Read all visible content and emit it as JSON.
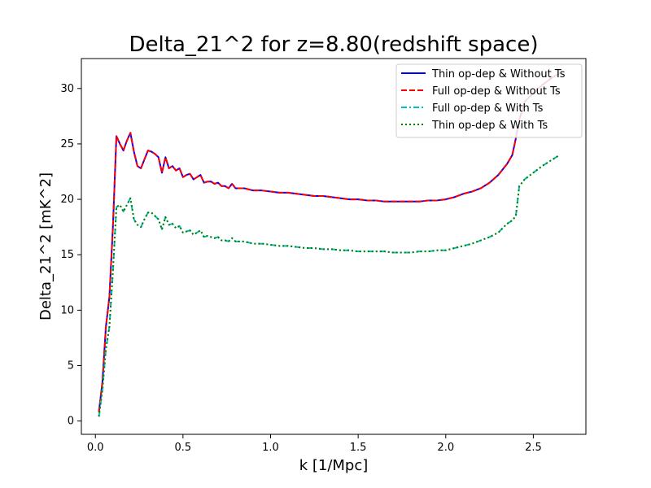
{
  "chart_data": {
    "type": "line",
    "title": "Delta_21^2 for z=8.80(redshift space)",
    "xlabel": "k [1/Mpc]",
    "ylabel": "Delta_21^2 [mK^2]",
    "xlim": [
      -0.08,
      2.8
    ],
    "ylim": [
      -1.2,
      32.7
    ],
    "xticks": [
      0.0,
      0.5,
      1.0,
      1.5,
      2.0,
      2.5
    ],
    "xtick_labels": [
      "0.0",
      "0.5",
      "1.0",
      "1.5",
      "2.0",
      "2.5"
    ],
    "yticks": [
      0,
      5,
      10,
      15,
      20,
      25,
      30
    ],
    "ytick_labels": [
      "0",
      "5",
      "10",
      "15",
      "20",
      "25",
      "30"
    ],
    "legend_position": "top-right",
    "grid": false,
    "series": [
      {
        "name": "Thin op-dep & Without Ts",
        "color": "#0000ff",
        "dash": "solid",
        "x": [
          0.02,
          0.04,
          0.06,
          0.08,
          0.1,
          0.12,
          0.14,
          0.16,
          0.18,
          0.2,
          0.22,
          0.24,
          0.26,
          0.28,
          0.3,
          0.32,
          0.34,
          0.36,
          0.38,
          0.4,
          0.42,
          0.44,
          0.46,
          0.48,
          0.5,
          0.52,
          0.54,
          0.56,
          0.58,
          0.6,
          0.62,
          0.64,
          0.66,
          0.68,
          0.7,
          0.72,
          0.74,
          0.76,
          0.78,
          0.8,
          0.85,
          0.9,
          0.95,
          1.0,
          1.05,
          1.1,
          1.15,
          1.2,
          1.25,
          1.3,
          1.35,
          1.4,
          1.45,
          1.5,
          1.55,
          1.6,
          1.65,
          1.7,
          1.75,
          1.8,
          1.85,
          1.9,
          1.95,
          2.0,
          2.05,
          2.1,
          2.15,
          2.2,
          2.25,
          2.3,
          2.35,
          2.38,
          2.4,
          2.42,
          2.45,
          2.5,
          2.55,
          2.6,
          2.65
        ],
        "y": [
          0.8,
          3.5,
          8.5,
          11.2,
          17.5,
          25.7,
          25.0,
          24.4,
          25.3,
          26.0,
          24.3,
          23.0,
          22.8,
          23.6,
          24.4,
          24.3,
          24.1,
          23.8,
          22.4,
          23.8,
          22.8,
          23.0,
          22.6,
          22.8,
          22.0,
          22.2,
          22.3,
          21.8,
          22.0,
          22.2,
          21.5,
          21.6,
          21.6,
          21.4,
          21.5,
          21.2,
          21.2,
          21.0,
          21.4,
          21.0,
          21.0,
          20.8,
          20.8,
          20.7,
          20.6,
          20.6,
          20.5,
          20.4,
          20.3,
          20.3,
          20.2,
          20.1,
          20.0,
          20.0,
          19.9,
          19.9,
          19.8,
          19.8,
          19.8,
          19.8,
          19.8,
          19.9,
          19.9,
          20.0,
          20.2,
          20.5,
          20.7,
          21.0,
          21.5,
          22.2,
          23.2,
          24.0,
          25.5,
          27.2,
          28.8,
          29.6,
          30.3,
          30.9,
          31.4
        ]
      },
      {
        "name": "Full op-dep & Without Ts",
        "color": "#ff0000",
        "dash": "dashed",
        "x": [
          0.02,
          0.04,
          0.06,
          0.08,
          0.1,
          0.12,
          0.14,
          0.16,
          0.18,
          0.2,
          0.22,
          0.24,
          0.26,
          0.28,
          0.3,
          0.32,
          0.34,
          0.36,
          0.38,
          0.4,
          0.42,
          0.44,
          0.46,
          0.48,
          0.5,
          0.52,
          0.54,
          0.56,
          0.58,
          0.6,
          0.62,
          0.64,
          0.66,
          0.68,
          0.7,
          0.72,
          0.74,
          0.76,
          0.78,
          0.8,
          0.85,
          0.9,
          0.95,
          1.0,
          1.05,
          1.1,
          1.15,
          1.2,
          1.25,
          1.3,
          1.35,
          1.4,
          1.45,
          1.5,
          1.55,
          1.6,
          1.65,
          1.7,
          1.75,
          1.8,
          1.85,
          1.9,
          1.95,
          2.0,
          2.05,
          2.1,
          2.15,
          2.2,
          2.25,
          2.3,
          2.35,
          2.38,
          2.4,
          2.42,
          2.45,
          2.5,
          2.55,
          2.6,
          2.65
        ],
        "y": [
          0.8,
          3.5,
          8.5,
          11.2,
          17.5,
          25.7,
          25.0,
          24.4,
          25.3,
          26.0,
          24.3,
          23.0,
          22.8,
          23.6,
          24.4,
          24.3,
          24.1,
          23.8,
          22.4,
          23.8,
          22.8,
          23.0,
          22.6,
          22.8,
          22.0,
          22.2,
          22.3,
          21.8,
          22.0,
          22.2,
          21.5,
          21.6,
          21.6,
          21.4,
          21.5,
          21.2,
          21.2,
          21.0,
          21.4,
          21.0,
          21.0,
          20.8,
          20.8,
          20.7,
          20.6,
          20.6,
          20.5,
          20.4,
          20.3,
          20.3,
          20.2,
          20.1,
          20.0,
          20.0,
          19.9,
          19.9,
          19.8,
          19.8,
          19.8,
          19.8,
          19.8,
          19.9,
          19.9,
          20.0,
          20.2,
          20.5,
          20.7,
          21.0,
          21.5,
          22.2,
          23.2,
          24.0,
          25.5,
          27.2,
          28.8,
          29.6,
          30.3,
          30.9,
          31.4
        ]
      },
      {
        "name": "Full op-dep & With Ts",
        "color": "#00bfbf",
        "dash": "dashdot",
        "x": [
          0.02,
          0.04,
          0.06,
          0.08,
          0.1,
          0.12,
          0.14,
          0.16,
          0.18,
          0.2,
          0.22,
          0.24,
          0.26,
          0.28,
          0.3,
          0.32,
          0.34,
          0.36,
          0.38,
          0.4,
          0.42,
          0.44,
          0.46,
          0.48,
          0.5,
          0.52,
          0.54,
          0.56,
          0.58,
          0.6,
          0.62,
          0.64,
          0.66,
          0.68,
          0.7,
          0.72,
          0.74,
          0.76,
          0.78,
          0.8,
          0.85,
          0.9,
          0.95,
          1.0,
          1.05,
          1.1,
          1.15,
          1.2,
          1.25,
          1.3,
          1.35,
          1.4,
          1.45,
          1.5,
          1.55,
          1.6,
          1.65,
          1.7,
          1.75,
          1.8,
          1.85,
          1.9,
          1.95,
          2.0,
          2.05,
          2.1,
          2.15,
          2.2,
          2.25,
          2.3,
          2.35,
          2.38,
          2.4,
          2.42,
          2.45,
          2.5,
          2.55,
          2.6,
          2.65
        ],
        "y": [
          0.4,
          2.8,
          6.5,
          8.5,
          13.5,
          19.3,
          19.5,
          18.9,
          19.5,
          20.1,
          18.2,
          17.7,
          17.5,
          18.2,
          18.8,
          18.8,
          18.5,
          18.2,
          17.3,
          18.4,
          17.7,
          17.8,
          17.4,
          17.6,
          17.0,
          17.1,
          17.2,
          16.8,
          17.0,
          17.2,
          16.6,
          16.7,
          16.6,
          16.5,
          16.6,
          16.3,
          16.3,
          16.2,
          16.5,
          16.2,
          16.2,
          16.0,
          16.0,
          15.9,
          15.8,
          15.8,
          15.7,
          15.6,
          15.6,
          15.5,
          15.5,
          15.4,
          15.4,
          15.3,
          15.3,
          15.3,
          15.3,
          15.2,
          15.2,
          15.2,
          15.3,
          15.3,
          15.4,
          15.4,
          15.6,
          15.8,
          16.0,
          16.3,
          16.6,
          17.0,
          17.8,
          18.1,
          18.5,
          21.2,
          21.8,
          22.4,
          23.0,
          23.5,
          24.0
        ]
      },
      {
        "name": "Thin op-dep & With Ts",
        "color": "#008000",
        "dash": "dotted",
        "x": [
          0.02,
          0.04,
          0.06,
          0.08,
          0.1,
          0.12,
          0.14,
          0.16,
          0.18,
          0.2,
          0.22,
          0.24,
          0.26,
          0.28,
          0.3,
          0.32,
          0.34,
          0.36,
          0.38,
          0.4,
          0.42,
          0.44,
          0.46,
          0.48,
          0.5,
          0.52,
          0.54,
          0.56,
          0.58,
          0.6,
          0.62,
          0.64,
          0.66,
          0.68,
          0.7,
          0.72,
          0.74,
          0.76,
          0.78,
          0.8,
          0.85,
          0.9,
          0.95,
          1.0,
          1.05,
          1.1,
          1.15,
          1.2,
          1.25,
          1.3,
          1.35,
          1.4,
          1.45,
          1.5,
          1.55,
          1.6,
          1.65,
          1.7,
          1.75,
          1.8,
          1.85,
          1.9,
          1.95,
          2.0,
          2.05,
          2.1,
          2.15,
          2.2,
          2.25,
          2.3,
          2.35,
          2.38,
          2.4,
          2.42,
          2.45,
          2.5,
          2.55,
          2.6,
          2.65
        ],
        "y": [
          0.4,
          2.8,
          6.5,
          8.5,
          13.5,
          19.3,
          19.5,
          18.9,
          19.5,
          20.1,
          18.2,
          17.7,
          17.5,
          18.2,
          18.8,
          18.8,
          18.5,
          18.2,
          17.3,
          18.4,
          17.7,
          17.8,
          17.4,
          17.6,
          17.0,
          17.1,
          17.2,
          16.8,
          17.0,
          17.2,
          16.6,
          16.7,
          16.6,
          16.5,
          16.6,
          16.3,
          16.3,
          16.2,
          16.5,
          16.2,
          16.2,
          16.0,
          16.0,
          15.9,
          15.8,
          15.8,
          15.7,
          15.6,
          15.6,
          15.5,
          15.5,
          15.4,
          15.4,
          15.3,
          15.3,
          15.3,
          15.3,
          15.2,
          15.2,
          15.2,
          15.3,
          15.3,
          15.4,
          15.4,
          15.6,
          15.8,
          16.0,
          16.3,
          16.6,
          17.0,
          17.8,
          18.1,
          18.5,
          21.2,
          21.8,
          22.4,
          23.0,
          23.5,
          24.0
        ]
      }
    ]
  }
}
